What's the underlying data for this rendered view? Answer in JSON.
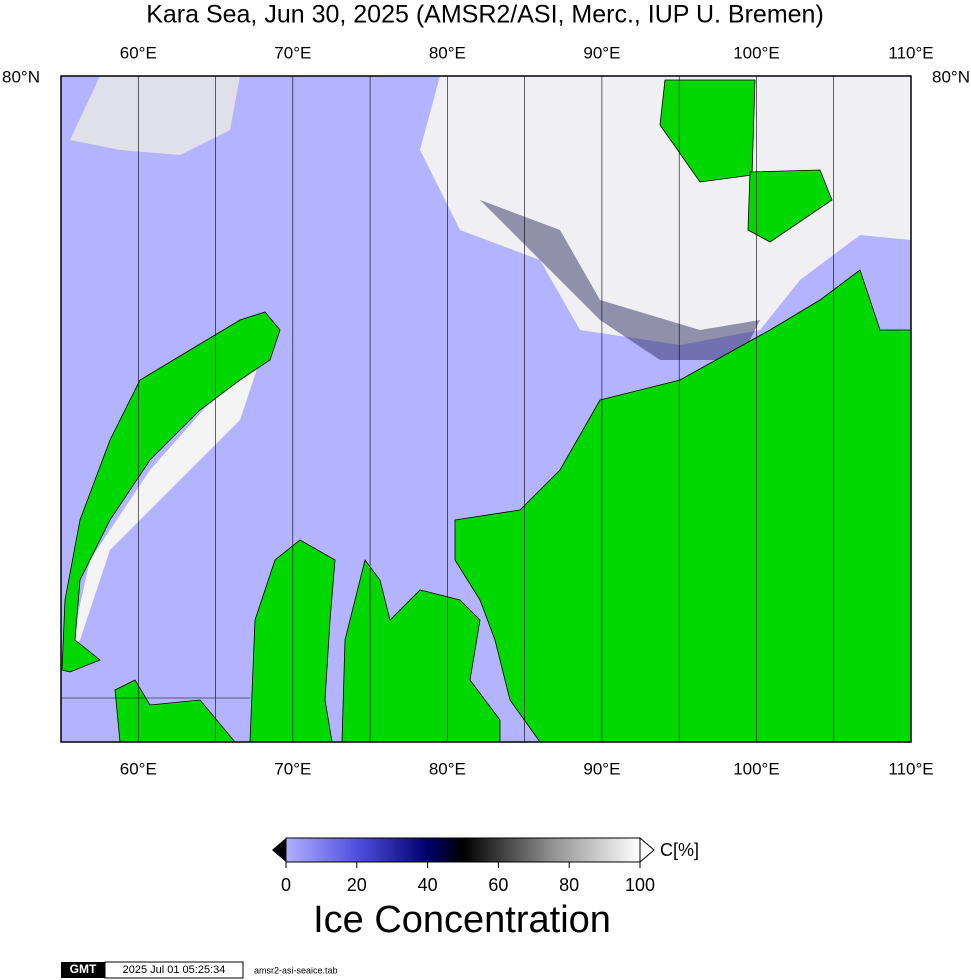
{
  "title": "Kara Sea, Jun 30, 2025 (AMSR2/ASI, Merc., IUP U. Bremen)",
  "map": {
    "lon_labels": [
      "60°E",
      "70°E",
      "80°E",
      "90°E",
      "100°E",
      "110°E"
    ],
    "lat_label": "80°N"
  },
  "colorbar": {
    "range": [
      0,
      100
    ],
    "ticks": [
      0,
      20,
      40,
      60,
      80,
      100
    ],
    "unit": "C[%]",
    "title": "Ice Concentration"
  },
  "footer": {
    "logo": "GMT",
    "timestamp": "2025 Jul 01 05:25:34",
    "filename": "amsr2-asi-seaice.tab"
  }
}
